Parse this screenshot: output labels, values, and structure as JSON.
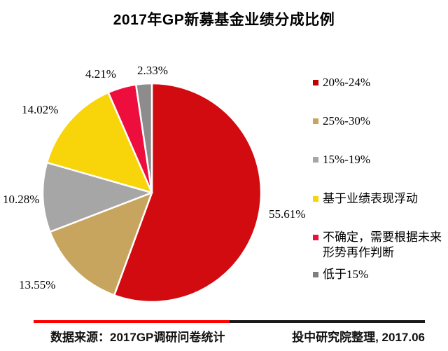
{
  "title": "2017年GP新募基金业绩分成比例",
  "chart_data": {
    "type": "pie",
    "title": "2017年GP新募基金业绩分成比例",
    "unit": "percent",
    "start_angle_deg": -90,
    "direction": "clockwise",
    "legend_position": "right",
    "slices": [
      {
        "name": "20%-24%",
        "value": 55.61,
        "value_label": "55.61%",
        "color": "#D20B10",
        "marker_color": "#C00000"
      },
      {
        "name": "25%-30%",
        "value": 13.55,
        "value_label": "13.55%",
        "color": "#C8A55E",
        "marker_color": "#C8A55E"
      },
      {
        "name": "15%-19%",
        "value": 10.28,
        "value_label": "10.28%",
        "color": "#A6A6A6",
        "marker_color": "#A6A6A6"
      },
      {
        "name": "基于业绩表现浮动",
        "value": 14.02,
        "value_label": "14.02%",
        "color": "#F8D50A",
        "marker_color": "#F8D50A"
      },
      {
        "name": "不确定，需要根据未来形势再作判断",
        "value": 4.21,
        "value_label": "4.21%",
        "color": "#EE0E3E",
        "marker_color": "#EE0E3E"
      },
      {
        "name": "低于15%",
        "value": 2.33,
        "value_label": "2.33%",
        "color": "#8C8C8C",
        "marker_color": "#7F7F7F"
      }
    ]
  },
  "footer": {
    "source_label": "数据来源：2017GP调研问卷统计",
    "credit_label": "投中研究院整理, 2017.06",
    "line_color_left": "#FE0000",
    "line_color_right": "#1A1A1A"
  }
}
